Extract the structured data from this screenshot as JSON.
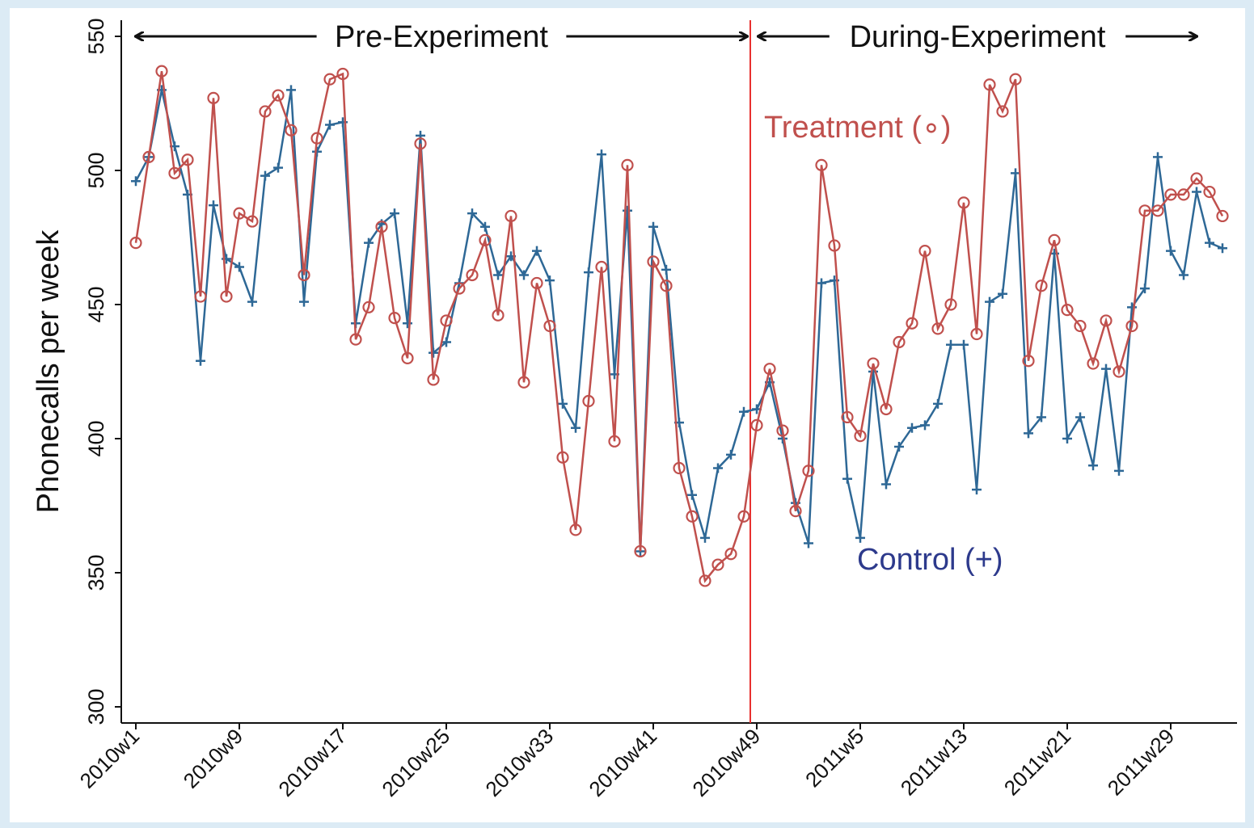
{
  "chart_data": {
    "type": "line",
    "y_label": "Phonecalls per week",
    "categories": [
      "2010w1",
      null,
      null,
      null,
      null,
      null,
      null,
      null,
      "2010w9",
      null,
      null,
      null,
      null,
      null,
      null,
      null,
      "2010w17",
      null,
      null,
      null,
      null,
      null,
      null,
      null,
      "2010w25",
      null,
      null,
      null,
      null,
      null,
      null,
      null,
      "2010w33",
      null,
      null,
      null,
      null,
      null,
      null,
      null,
      "2010w41",
      null,
      null,
      null,
      null,
      null,
      null,
      null,
      "2010w49",
      null,
      null,
      null,
      null,
      null,
      null,
      null,
      "2011w5",
      null,
      null,
      null,
      null,
      null,
      null,
      null,
      "2011w13",
      null,
      null,
      null,
      null,
      null,
      null,
      null,
      "2011w21",
      null,
      null,
      null,
      null,
      null,
      null,
      null,
      "2011w29",
      null,
      null,
      null,
      null
    ],
    "series": [
      {
        "name": "Control (+)",
        "color": "#2e6896",
        "label_color": "#2d3a8c",
        "marker": "plus",
        "values": [
          496,
          505,
          530,
          509,
          491,
          429,
          487,
          467,
          464,
          451,
          498,
          501,
          530,
          451,
          507,
          517,
          518,
          443,
          473,
          480,
          484,
          443,
          513,
          432,
          436,
          458,
          484,
          479,
          461,
          468,
          461,
          470,
          459,
          413,
          404,
          462,
          506,
          424,
          485,
          358,
          479,
          463,
          406,
          379,
          363,
          389,
          394,
          410,
          411,
          421,
          400,
          376,
          361,
          458,
          459,
          385,
          363,
          425,
          383,
          397,
          404,
          405,
          413,
          435,
          435,
          381,
          451,
          454,
          499,
          402,
          408,
          469,
          400,
          408,
          390,
          426,
          388,
          449,
          456,
          505,
          470,
          461,
          492,
          473,
          471
        ]
      },
      {
        "name": "Treatment (∘)",
        "color": "#c0504d",
        "label_color": "#c0504d",
        "marker": "circle",
        "values": [
          473,
          505,
          537,
          499,
          504,
          453,
          527,
          453,
          484,
          481,
          522,
          528,
          515,
          461,
          512,
          534,
          536,
          437,
          449,
          479,
          445,
          430,
          510,
          422,
          444,
          456,
          461,
          474,
          446,
          483,
          421,
          458,
          442,
          393,
          366,
          414,
          464,
          399,
          502,
          358,
          466,
          457,
          389,
          371,
          347,
          353,
          357,
          371,
          405,
          426,
          403,
          373,
          388,
          502,
          472,
          408,
          401,
          428,
          411,
          436,
          443,
          470,
          441,
          450,
          488,
          439,
          532,
          522,
          534,
          429,
          457,
          474,
          448,
          442,
          428,
          444,
          425,
          442,
          485,
          485,
          491,
          491,
          497,
          492,
          483
        ]
      }
    ],
    "phases": [
      {
        "label": "Pre-Experiment",
        "start": "2010w1"
      },
      {
        "label": "During-Experiment",
        "start": "2010w49"
      }
    ],
    "ylim": [
      300,
      550
    ],
    "yticks": [
      300,
      350,
      400,
      450,
      500,
      550
    ],
    "grid": false
  }
}
